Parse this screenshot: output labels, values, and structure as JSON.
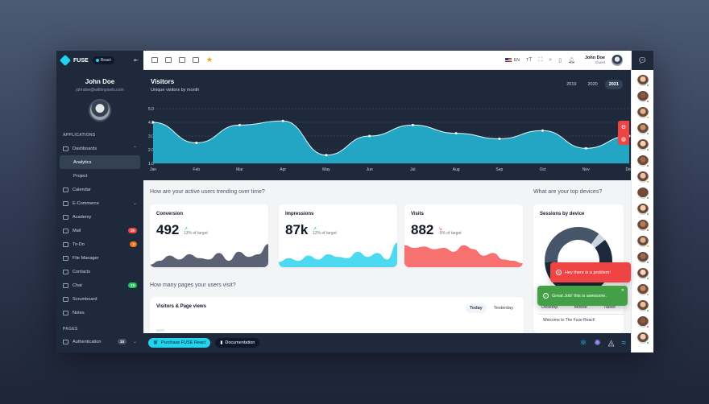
{
  "app": {
    "logo_text": "FUSE",
    "framework_badge": "React"
  },
  "user": {
    "name": "John Doe",
    "email": "johndoe@withinpixels.com",
    "role": "Guest"
  },
  "sidebar": {
    "section_apps": "APPLICATIONS",
    "section_pages": "PAGES",
    "items": [
      {
        "label": "Dashboards",
        "icon": "dashboard-icon",
        "chevron": "⌃"
      },
      {
        "label": "Analytics",
        "sub": true,
        "active": true
      },
      {
        "label": "Project",
        "sub": true
      },
      {
        "label": "Calendar",
        "icon": "calendar-icon"
      },
      {
        "label": "E-Commerce",
        "icon": "cart-icon",
        "chevron": "⌄"
      },
      {
        "label": "Academy",
        "icon": "school-icon"
      },
      {
        "label": "Mail",
        "icon": "mail-icon",
        "badge": "25",
        "badge_color": "#ef4444"
      },
      {
        "label": "To-Do",
        "icon": "check-icon",
        "badge": "3",
        "badge_color": "#f97316"
      },
      {
        "label": "File Manager",
        "icon": "folder-icon"
      },
      {
        "label": "Contacts",
        "icon": "contacts-icon"
      },
      {
        "label": "Chat",
        "icon": "chat-icon",
        "badge": "13",
        "badge_color": "#22c55e"
      },
      {
        "label": "Scrumboard",
        "icon": "board-icon"
      },
      {
        "label": "Notes",
        "icon": "notes-icon"
      }
    ],
    "pages_item": {
      "label": "Authentication",
      "badge": "10"
    }
  },
  "topbar": {
    "language": "EN"
  },
  "visitors": {
    "title": "Visitors",
    "subtitle": "Unique visitors by month",
    "years": [
      "2019",
      "2020",
      "2021"
    ],
    "selected_year": "2021"
  },
  "chart_data": [
    {
      "type": "area",
      "categories": [
        "Jan",
        "Feb",
        "Mar",
        "Apr",
        "May",
        "Jun",
        "Jul",
        "Aug",
        "Sep",
        "Oct",
        "Nov",
        "Dec"
      ],
      "series": [
        {
          "values": [
            4.0,
            2.5,
            3.8,
            4.1,
            1.6,
            3.0,
            3.8,
            3.2,
            2.8,
            3.4,
            2.1,
            3.0
          ]
        }
      ],
      "y_ticks": [
        "1.0",
        "2.0",
        "3.0",
        "4.0",
        "5.0"
      ],
      "ylim": [
        1,
        5
      ],
      "color": "#22a6c4"
    }
  ],
  "sections": {
    "trending": "How are your active users trending over time?",
    "devices": "What are your top devices?",
    "pages": "How many pages your users visit?"
  },
  "kpis": [
    {
      "title": "Conversion",
      "value": "492",
      "trend": "↗",
      "trend_color": "#22c55e",
      "sub": "13% of target",
      "color": "#5b6274"
    },
    {
      "title": "Impressions",
      "value": "87k",
      "trend": "↗",
      "trend_color": "#22c55e",
      "sub": "12% of target",
      "color": "#4dd9f0"
    },
    {
      "title": "Visits",
      "value": "882",
      "trend": "↘",
      "trend_color": "#ef4444",
      "sub": "-9% of target",
      "color": "#f87171"
    }
  ],
  "devices": {
    "title": "Sessions by device",
    "labels": [
      "Desktop",
      "Mobile",
      "Tablet"
    ],
    "shares": [
      0.6,
      0.36,
      0.04
    ]
  },
  "page_views": {
    "title": "Visitors & Page views",
    "tabs": [
      "Today",
      "Yesterday"
    ],
    "selected": "Today"
  },
  "toasts": {
    "error": "Hey there is a problem!",
    "success": "Great Job! this is awesome.",
    "welcome": "Welcome to The Fuse React!"
  },
  "footer": {
    "purchase": "Purchase FUSE React",
    "documentation": "Documentation"
  },
  "rail": {
    "statuses": [
      "#22c55e",
      "#ef4444",
      "#f59e0b",
      "#22c55e",
      "#22c55e",
      "#ef4444",
      "#f59e0b",
      "#22c55e",
      "#22c55e",
      "#ef4444",
      "#f59e0b",
      "#22c55e",
      "#22c55e",
      "#f59e0b",
      "#22c55e",
      "#ef4444",
      "#22c55e"
    ]
  }
}
